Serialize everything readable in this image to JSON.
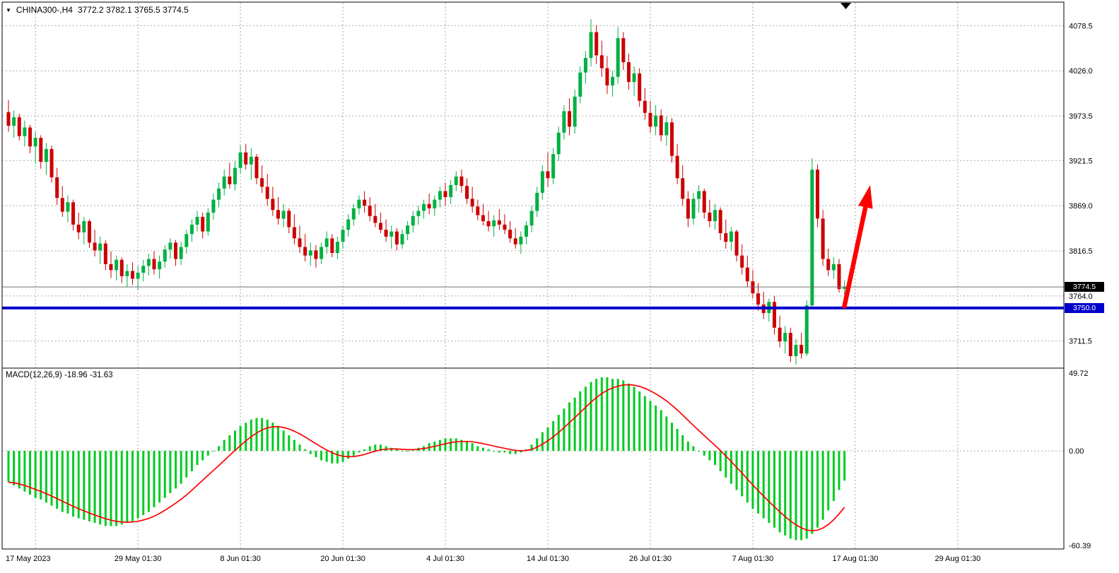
{
  "header": {
    "symbol": "CHINA300-,H4",
    "quote": "3772.2 3782.1 3765.5 3774.5"
  },
  "indicator": {
    "label": "MACD(12,26,9) -18.96 -31.63"
  },
  "price_axis": {
    "current_badge": "3774.5",
    "support_badge": "3750.0"
  },
  "chart_data": [
    {
      "type": "candlestick",
      "title": "CHINA300- H4",
      "last_quote": {
        "open": 3772.2,
        "high": 3782.1,
        "low": 3765.5,
        "close": 3774.5
      },
      "y_ticks": [
        "4078.5",
        "4026.0",
        "3973.5",
        "3921.5",
        "3869.0",
        "3816.5",
        "3764.0",
        "3711.5"
      ],
      "ylim": [
        3680,
        4101
      ],
      "x_labels": [
        "17 May 2023",
        "29 May 01:30",
        "8 Jun 01:30",
        "20 Jun 01:30",
        "4 Jul 01:30",
        "14 Jul 01:30",
        "26 Jul 01:30",
        "7 Aug 01:30",
        "17 Aug 01:30",
        "29 Aug 01:30"
      ],
      "current_price": 3774.5,
      "support_line": {
        "price": 3750.0,
        "color": "#0000CC"
      },
      "annotation_arrow": {
        "direction": "up",
        "color": "#FF0000"
      },
      "colors": {
        "up": "#00B143",
        "down": "#CC0000"
      },
      "candles": [
        [
          3978,
          3992,
          3955,
          3962
        ],
        [
          3962,
          3980,
          3948,
          3972
        ],
        [
          3972,
          3976,
          3945,
          3950
        ],
        [
          3950,
          3968,
          3938,
          3960
        ],
        [
          3960,
          3963,
          3930,
          3938
        ],
        [
          3938,
          3955,
          3918,
          3948
        ],
        [
          3948,
          3951,
          3912,
          3920
        ],
        [
          3920,
          3942,
          3905,
          3935
        ],
        [
          3935,
          3939,
          3896,
          3902
        ],
        [
          3902,
          3913,
          3870,
          3878
        ],
        [
          3878,
          3892,
          3856,
          3862
        ],
        [
          3862,
          3881,
          3850,
          3873
        ],
        [
          3873,
          3876,
          3840,
          3847
        ],
        [
          3847,
          3861,
          3830,
          3838
        ],
        [
          3838,
          3856,
          3824,
          3851
        ],
        [
          3851,
          3853,
          3820,
          3826
        ],
        [
          3826,
          3841,
          3810,
          3817
        ],
        [
          3817,
          3833,
          3801,
          3825
        ],
        [
          3825,
          3829,
          3794,
          3801
        ],
        [
          3801,
          3816,
          3785,
          3794
        ],
        [
          3794,
          3811,
          3782,
          3806
        ],
        [
          3806,
          3809,
          3779,
          3787
        ],
        [
          3787,
          3801,
          3774,
          3793
        ],
        [
          3793,
          3803,
          3777,
          3784
        ],
        [
          3784,
          3799,
          3771,
          3791
        ],
        [
          3791,
          3806,
          3781,
          3799
        ],
        [
          3799,
          3813,
          3788,
          3807
        ],
        [
          3807,
          3816,
          3789,
          3795
        ],
        [
          3795,
          3811,
          3784,
          3804
        ],
        [
          3804,
          3823,
          3797,
          3818
        ],
        [
          3818,
          3831,
          3807,
          3826
        ],
        [
          3826,
          3829,
          3799,
          3807
        ],
        [
          3807,
          3827,
          3800,
          3821
        ],
        [
          3821,
          3841,
          3813,
          3836
        ],
        [
          3836,
          3853,
          3827,
          3847
        ],
        [
          3847,
          3863,
          3839,
          3856
        ],
        [
          3856,
          3861,
          3831,
          3839
        ],
        [
          3839,
          3866,
          3834,
          3861
        ],
        [
          3861,
          3883,
          3853,
          3876
        ],
        [
          3876,
          3896,
          3867,
          3889
        ],
        [
          3889,
          3911,
          3881,
          3903
        ],
        [
          3903,
          3919,
          3889,
          3894
        ],
        [
          3894,
          3921,
          3887,
          3913
        ],
        [
          3913,
          3939,
          3906,
          3931
        ],
        [
          3931,
          3941,
          3911,
          3917
        ],
        [
          3917,
          3936,
          3899,
          3926
        ],
        [
          3926,
          3929,
          3894,
          3901
        ],
        [
          3901,
          3916,
          3884,
          3891
        ],
        [
          3891,
          3906,
          3869,
          3877
        ],
        [
          3877,
          3891,
          3857,
          3864
        ],
        [
          3864,
          3879,
          3847,
          3854
        ],
        [
          3854,
          3871,
          3844,
          3863
        ],
        [
          3863,
          3866,
          3837,
          3844
        ],
        [
          3844,
          3859,
          3824,
          3831
        ],
        [
          3831,
          3846,
          3814,
          3821
        ],
        [
          3821,
          3836,
          3804,
          3811
        ],
        [
          3811,
          3826,
          3799,
          3817
        ],
        [
          3817,
          3823,
          3797,
          3807
        ],
        [
          3807,
          3826,
          3801,
          3821
        ],
        [
          3821,
          3839,
          3813,
          3831
        ],
        [
          3831,
          3836,
          3809,
          3814
        ],
        [
          3814,
          3833,
          3807,
          3827
        ],
        [
          3827,
          3846,
          3819,
          3841
        ],
        [
          3841,
          3859,
          3833,
          3853
        ],
        [
          3853,
          3871,
          3846,
          3866
        ],
        [
          3866,
          3881,
          3859,
          3876
        ],
        [
          3876,
          3886,
          3861,
          3869
        ],
        [
          3869,
          3879,
          3851,
          3857
        ],
        [
          3857,
          3871,
          3844,
          3849
        ],
        [
          3849,
          3861,
          3837,
          3841
        ],
        [
          3841,
          3853,
          3827,
          3833
        ],
        [
          3833,
          3846,
          3819,
          3839
        ],
        [
          3839,
          3843,
          3817,
          3824
        ],
        [
          3824,
          3841,
          3819,
          3836
        ],
        [
          3836,
          3851,
          3829,
          3846
        ],
        [
          3846,
          3863,
          3838,
          3857
        ],
        [
          3857,
          3869,
          3847,
          3863
        ],
        [
          3863,
          3876,
          3854,
          3871
        ],
        [
          3871,
          3883,
          3859,
          3866
        ],
        [
          3866,
          3881,
          3857,
          3876
        ],
        [
          3876,
          3891,
          3867,
          3886
        ],
        [
          3886,
          3896,
          3869,
          3879
        ],
        [
          3879,
          3899,
          3871,
          3893
        ],
        [
          3893,
          3909,
          3886,
          3903
        ],
        [
          3903,
          3911,
          3884,
          3892
        ],
        [
          3892,
          3901,
          3871,
          3877
        ],
        [
          3877,
          3891,
          3861,
          3868
        ],
        [
          3868,
          3876,
          3852,
          3858
        ],
        [
          3858,
          3871,
          3846,
          3851
        ],
        [
          3851,
          3863,
          3839,
          3845
        ],
        [
          3845,
          3858,
          3833,
          3852
        ],
        [
          3852,
          3865,
          3841,
          3847
        ],
        [
          3847,
          3859,
          3836,
          3841
        ],
        [
          3841,
          3851,
          3826,
          3831
        ],
        [
          3831,
          3843,
          3819,
          3824
        ],
        [
          3824,
          3839,
          3813,
          3833
        ],
        [
          3833,
          3851,
          3824,
          3846
        ],
        [
          3846,
          3869,
          3838,
          3863
        ],
        [
          3863,
          3891,
          3856,
          3884
        ],
        [
          3884,
          3916,
          3876,
          3909
        ],
        [
          3909,
          3931,
          3891,
          3901
        ],
        [
          3901,
          3936,
          3894,
          3929
        ],
        [
          3929,
          3961,
          3921,
          3954
        ],
        [
          3954,
          3986,
          3946,
          3979
        ],
        [
          3979,
          3994,
          3951,
          3961
        ],
        [
          3961,
          4004,
          3953,
          3996
        ],
        [
          3996,
          4031,
          3988,
          4024
        ],
        [
          4024,
          4049,
          4011,
          4041
        ],
        [
          4041,
          4086,
          4031,
          4071
        ],
        [
          4071,
          4079,
          4034,
          4044
        ],
        [
          4044,
          4061,
          4019,
          4029
        ],
        [
          4029,
          4043,
          3999,
          4009
        ],
        [
          4009,
          4026,
          3996,
          4019
        ],
        [
          4019,
          4077,
          4011,
          4064
        ],
        [
          4064,
          4071,
          4027,
          4036
        ],
        [
          4036,
          4046,
          4004,
          4013
        ],
        [
          4013,
          4031,
          3997,
          4023
        ],
        [
          4023,
          4029,
          3984,
          3991
        ],
        [
          3991,
          4006,
          3969,
          3977
        ],
        [
          3977,
          3991,
          3954,
          3961
        ],
        [
          3961,
          3986,
          3951,
          3974
        ],
        [
          3974,
          3981,
          3944,
          3951
        ],
        [
          3951,
          3973,
          3939,
          3966
        ],
        [
          3966,
          3971,
          3919,
          3927
        ],
        [
          3927,
          3941,
          3894,
          3901
        ],
        [
          3901,
          3916,
          3869,
          3877
        ],
        [
          3877,
          3886,
          3844,
          3854
        ],
        [
          3854,
          3884,
          3847,
          3877
        ],
        [
          3877,
          3893,
          3861,
          3886
        ],
        [
          3886,
          3889,
          3854,
          3861
        ],
        [
          3861,
          3876,
          3844,
          3851
        ],
        [
          3851,
          3871,
          3841,
          3864
        ],
        [
          3864,
          3867,
          3829,
          3837
        ],
        [
          3837,
          3853,
          3819,
          3827
        ],
        [
          3827,
          3844,
          3817,
          3839
        ],
        [
          3839,
          3841,
          3804,
          3811
        ],
        [
          3811,
          3824,
          3789,
          3797
        ],
        [
          3797,
          3811,
          3774,
          3781
        ],
        [
          3781,
          3794,
          3761,
          3767
        ],
        [
          3767,
          3779,
          3747,
          3754
        ],
        [
          3754,
          3769,
          3737,
          3744
        ],
        [
          3744,
          3761,
          3734,
          3757
        ],
        [
          3757,
          3764,
          3719,
          3727
        ],
        [
          3727,
          3741,
          3704,
          3711
        ],
        [
          3711,
          3729,
          3697,
          3721
        ],
        [
          3721,
          3727,
          3687,
          3694
        ],
        [
          3694,
          3714,
          3684,
          3707
        ],
        [
          3707,
          3721,
          3691,
          3697
        ],
        [
          3697,
          3759,
          3694,
          3753
        ],
        [
          3753,
          3924,
          3749,
          3911
        ],
        [
          3911,
          3917,
          3844,
          3854
        ],
        [
          3854,
          3864,
          3799,
          3807
        ],
        [
          3807,
          3819,
          3787,
          3794
        ],
        [
          3794,
          3809,
          3784,
          3801
        ],
        [
          3801,
          3807,
          3768,
          3772
        ],
        [
          3772.2,
          3782.1,
          3765.5,
          3774.5
        ]
      ]
    },
    {
      "type": "bar",
      "title": "MACD(12,26,9)",
      "macd_value": -18.96,
      "signal_value": -31.63,
      "y_ticks": [
        "49.72",
        "0.00",
        "-60.39"
      ],
      "ylim": [
        -60.39,
        49.72
      ],
      "signal_period": 9,
      "colors": {
        "histogram": "#00CC22",
        "signal": "#FF0000"
      },
      "values": [
        -20,
        -22,
        -24,
        -26,
        -28,
        -30,
        -31,
        -33,
        -35,
        -37,
        -39,
        -40,
        -42,
        -43,
        -44,
        -45,
        -46,
        -47,
        -48,
        -48,
        -48,
        -47,
        -46,
        -45,
        -43,
        -41,
        -39,
        -36,
        -33,
        -30,
        -27,
        -24,
        -21,
        -17,
        -13,
        -9,
        -6,
        -3,
        0,
        3,
        7,
        10,
        13,
        16,
        18,
        20,
        21,
        21,
        20,
        18,
        16,
        13,
        10,
        7,
        4,
        1,
        -2,
        -4,
        -6,
        -7,
        -8,
        -8,
        -7,
        -5,
        -3,
        -1,
        1,
        3,
        4,
        4,
        3,
        2,
        1,
        0,
        0,
        1,
        2,
        3,
        5,
        6,
        7,
        8,
        8,
        8,
        7,
        6,
        5,
        3,
        2,
        1,
        0,
        -1,
        -1,
        -2,
        -2,
        -1,
        1,
        4,
        8,
        12,
        15,
        19,
        23,
        27,
        31,
        34,
        38,
        41,
        44,
        46,
        47,
        47,
        46,
        46,
        45,
        43,
        41,
        38,
        35,
        32,
        29,
        26,
        22,
        18,
        14,
        10,
        6,
        3,
        0,
        -3,
        -6,
        -9,
        -13,
        -17,
        -21,
        -25,
        -29,
        -33,
        -37,
        -40,
        -43,
        -46,
        -49,
        -52,
        -54,
        -56,
        -57,
        -57,
        -56,
        -53,
        -49,
        -44,
        -38,
        -32,
        -25,
        -18.96
      ]
    }
  ]
}
